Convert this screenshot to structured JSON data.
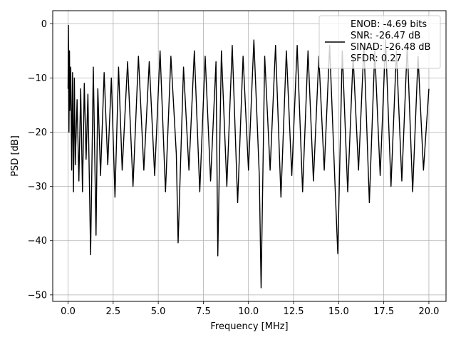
{
  "chart_data": {
    "type": "line",
    "xlabel": "Frequency [MHz]",
    "ylabel": "PSD [dB]",
    "xlim": [
      -0.85,
      20.95
    ],
    "ylim": [
      -51.2,
      2.4
    ],
    "x_ticks": [
      0.0,
      2.5,
      5.0,
      7.5,
      10.0,
      12.5,
      15.0,
      17.5,
      20.0
    ],
    "x_tick_labels": [
      "0.0",
      "2.5",
      "5.0",
      "7.5",
      "10.0",
      "12.5",
      "15.0",
      "17.5",
      "20.0"
    ],
    "y_ticks": [
      0,
      -10,
      -20,
      -30,
      -40,
      -50
    ],
    "y_tick_labels": [
      "0",
      "−10",
      "−20",
      "−30",
      "−40",
      "−50"
    ],
    "grid": true,
    "legend_position": "top-right",
    "line_color": "#000000",
    "series": [
      {
        "name": "ENOB: -4.69 bits\nSNR: -26.47 dB\nSINAD: -26.48 dB\nSFDR: 0.27",
        "legend_lines": [
          "ENOB: -4.69 bits",
          "SNR: -26.47 dB",
          "SINAD: -26.48 dB",
          "SFDR: 0.27"
        ],
        "x": [
          0.0,
          0.02,
          0.05,
          0.08,
          0.1,
          0.15,
          0.2,
          0.25,
          0.3,
          0.35,
          0.4,
          0.5,
          0.6,
          0.7,
          0.8,
          0.9,
          1.0,
          1.1,
          1.25,
          1.4,
          1.55,
          1.65,
          1.8,
          2.0,
          2.2,
          2.4,
          2.6,
          2.8,
          3.0,
          3.3,
          3.6,
          3.9,
          4.2,
          4.5,
          4.8,
          5.1,
          5.4,
          5.7,
          6.0,
          6.1,
          6.4,
          6.7,
          7.0,
          7.3,
          7.6,
          7.9,
          8.2,
          8.3,
          8.5,
          8.8,
          9.1,
          9.4,
          9.7,
          10.0,
          10.3,
          10.6,
          10.7,
          10.9,
          11.2,
          11.5,
          11.8,
          12.1,
          12.4,
          12.7,
          13.0,
          13.3,
          13.6,
          13.9,
          14.2,
          14.5,
          14.8,
          14.95,
          15.2,
          15.5,
          15.8,
          16.1,
          16.4,
          16.7,
          17.0,
          17.3,
          17.6,
          17.9,
          18.2,
          18.5,
          18.8,
          19.1,
          19.4,
          19.7,
          20.0
        ],
        "values": [
          -12,
          -0.3,
          -20,
          -5,
          -16,
          -8,
          -27,
          -9,
          -31,
          -10,
          -26,
          -14,
          -29,
          -12,
          -31,
          -11,
          -25,
          -13,
          -42.6,
          -8,
          -39,
          -12,
          -28,
          -9,
          -26,
          -10,
          -32,
          -8,
          -27,
          -7,
          -30,
          -6,
          -27,
          -7,
          -28,
          -5,
          -31,
          -6,
          -24,
          -40.4,
          -8,
          -27,
          -5,
          -31,
          -6,
          -29,
          -7,
          -42.8,
          -5,
          -30,
          -4,
          -33,
          -6,
          -27,
          -3,
          -28,
          -48.7,
          -6,
          -27,
          -4,
          -32,
          -5,
          -28,
          -4,
          -31,
          -5,
          -29,
          -6,
          -27,
          -4,
          -30,
          -42.4,
          -5,
          -31,
          -6,
          -27,
          -4,
          -33,
          -5,
          -28,
          -3,
          -30,
          -5,
          -29,
          -4,
          -31,
          -6,
          -27,
          -12
        ]
      }
    ]
  }
}
